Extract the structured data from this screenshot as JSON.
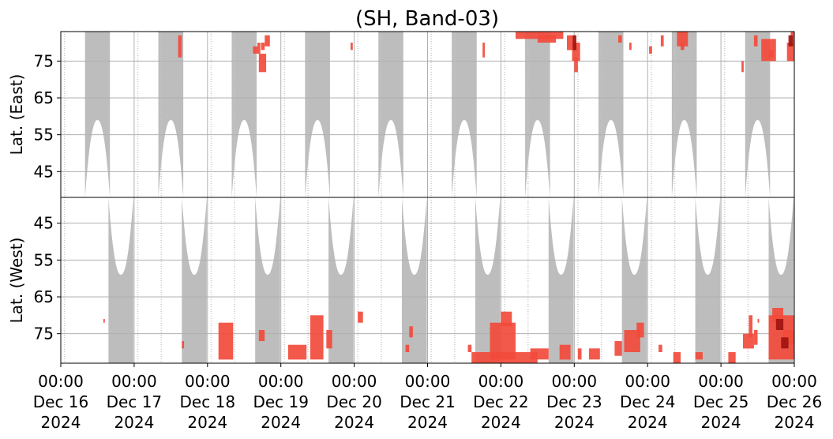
{
  "chart_data": {
    "type": "heatmap",
    "title": "(SH, Band-03)",
    "panels": [
      {
        "name": "east",
        "ylabel": "Lat. (East)",
        "yticks": [
          45,
          55,
          65,
          75
        ],
        "ylim": [
          38,
          83
        ]
      },
      {
        "name": "west",
        "ylabel": "Lat. (West)",
        "yticks": [
          75,
          65,
          55,
          45
        ],
        "ylim": [
          83,
          38
        ]
      }
    ],
    "xlim": [
      "2024-12-16T00:00",
      "2024-12-26T00:00"
    ],
    "xticks": [
      {
        "time": "00:00",
        "date": "Dec 16",
        "year": "2024"
      },
      {
        "time": "00:00",
        "date": "Dec 17",
        "year": "2024"
      },
      {
        "time": "00:00",
        "date": "Dec 18",
        "year": "2024"
      },
      {
        "time": "00:00",
        "date": "Dec 19",
        "year": "2024"
      },
      {
        "time": "00:00",
        "date": "Dec 20",
        "year": "2024"
      },
      {
        "time": "00:00",
        "date": "Dec 21",
        "year": "2024"
      },
      {
        "time": "00:00",
        "date": "Dec 22",
        "year": "2024"
      },
      {
        "time": "00:00",
        "date": "Dec 23",
        "year": "2024"
      },
      {
        "time": "00:00",
        "date": "Dec 24",
        "year": "2024"
      },
      {
        "time": "00:00",
        "date": "Dec 25",
        "year": "2024"
      },
      {
        "time": "00:00",
        "date": "Dec 26",
        "year": "2024"
      }
    ],
    "grid": true,
    "colors": {
      "coverage": "#bdbdbd",
      "event": "#f24b3c",
      "event_strong": "#a0140f",
      "grid": "#b0b0b0"
    },
    "coverage_east_centers_day": [
      0.5,
      1.5,
      2.5,
      3.5,
      4.5,
      5.5,
      6.5,
      7.5,
      8.5,
      9.5
    ],
    "coverage_west_centers_day": [
      0.82,
      1.82,
      2.82,
      3.82,
      4.82,
      5.82,
      6.82,
      7.82,
      8.82,
      9.82
    ],
    "coverage_halfwidth_day": 0.17,
    "coverage_edge_lat": 59,
    "east_events": [
      {
        "t0": 1.6,
        "t1": 1.65,
        "lat0": 76,
        "lat1": 82
      },
      {
        "t0": 2.68,
        "t1": 2.72,
        "lat0": 77,
        "lat1": 80
      },
      {
        "t0": 2.73,
        "t1": 2.78,
        "lat0": 78,
        "lat1": 80
      },
      {
        "t0": 2.62,
        "t1": 2.68,
        "lat0": 77,
        "lat1": 79
      },
      {
        "t0": 2.7,
        "t1": 2.8,
        "lat0": 72,
        "lat1": 77
      },
      {
        "t0": 2.78,
        "t1": 2.85,
        "lat0": 79,
        "lat1": 82
      },
      {
        "t0": 3.95,
        "t1": 3.98,
        "lat0": 78,
        "lat1": 80
      },
      {
        "t0": 5.75,
        "t1": 5.78,
        "lat0": 76,
        "lat1": 80
      },
      {
        "t0": 6.2,
        "t1": 6.85,
        "lat0": 81,
        "lat1": 83
      },
      {
        "t0": 6.5,
        "t1": 6.75,
        "lat0": 80,
        "lat1": 82
      },
      {
        "t0": 6.9,
        "t1": 7.0,
        "lat0": 78,
        "lat1": 82
      },
      {
        "t0": 6.97,
        "t1": 7.08,
        "lat0": 75,
        "lat1": 80
      },
      {
        "t0": 7.0,
        "t1": 7.05,
        "lat0": 72,
        "lat1": 76
      },
      {
        "t0": 7.6,
        "t1": 7.65,
        "lat0": 80,
        "lat1": 82
      },
      {
        "t0": 7.75,
        "t1": 7.78,
        "lat0": 78,
        "lat1": 80
      },
      {
        "t0": 8.02,
        "t1": 8.06,
        "lat0": 77,
        "lat1": 79
      },
      {
        "t0": 8.18,
        "t1": 8.22,
        "lat0": 79,
        "lat1": 82
      },
      {
        "t0": 8.4,
        "t1": 8.55,
        "lat0": 79,
        "lat1": 83
      },
      {
        "t0": 8.45,
        "t1": 8.5,
        "lat0": 78,
        "lat1": 80
      },
      {
        "t0": 9.28,
        "t1": 9.31,
        "lat0": 72,
        "lat1": 75
      },
      {
        "t0": 9.45,
        "t1": 9.5,
        "lat0": 79,
        "lat1": 82
      },
      {
        "t0": 9.55,
        "t1": 9.75,
        "lat0": 75,
        "lat1": 81
      },
      {
        "t0": 9.65,
        "t1": 9.72,
        "lat0": 76,
        "lat1": 78
      },
      {
        "t0": 9.9,
        "t1": 10.0,
        "lat0": 75,
        "lat1": 80
      },
      {
        "t0": 9.95,
        "t1": 10.0,
        "lat0": 79,
        "lat1": 83
      }
    ],
    "east_events_strong": [
      {
        "t0": 6.98,
        "t1": 7.03,
        "lat0": 78,
        "lat1": 82
      },
      {
        "t0": 9.92,
        "t1": 9.98,
        "lat0": 79,
        "lat1": 82
      }
    ],
    "west_events": [
      {
        "t0": 0.58,
        "t1": 0.6,
        "lat0": 71,
        "lat1": 72
      },
      {
        "t0": 1.65,
        "t1": 1.68,
        "lat0": 77,
        "lat1": 79
      },
      {
        "t0": 2.15,
        "t1": 2.35,
        "lat0": 72,
        "lat1": 82
      },
      {
        "t0": 2.7,
        "t1": 2.78,
        "lat0": 74,
        "lat1": 77
      },
      {
        "t0": 3.1,
        "t1": 3.35,
        "lat0": 78,
        "lat1": 82
      },
      {
        "t0": 3.4,
        "t1": 3.58,
        "lat0": 70,
        "lat1": 82
      },
      {
        "t0": 3.62,
        "t1": 3.7,
        "lat0": 74,
        "lat1": 79
      },
      {
        "t0": 4.05,
        "t1": 4.12,
        "lat0": 69,
        "lat1": 72
      },
      {
        "t0": 4.7,
        "t1": 4.75,
        "lat0": 78,
        "lat1": 80
      },
      {
        "t0": 4.75,
        "t1": 4.8,
        "lat0": 73,
        "lat1": 76
      },
      {
        "t0": 5.55,
        "t1": 5.6,
        "lat0": 78,
        "lat1": 80
      },
      {
        "t0": 5.6,
        "t1": 6.5,
        "lat0": 80,
        "lat1": 83
      },
      {
        "t0": 5.85,
        "t1": 6.2,
        "lat0": 72,
        "lat1": 82
      },
      {
        "t0": 6.0,
        "t1": 6.15,
        "lat0": 69,
        "lat1": 73
      },
      {
        "t0": 6.4,
        "t1": 6.65,
        "lat0": 79,
        "lat1": 82
      },
      {
        "t0": 6.8,
        "t1": 6.95,
        "lat0": 78,
        "lat1": 82
      },
      {
        "t0": 7.05,
        "t1": 7.1,
        "lat0": 79,
        "lat1": 82
      },
      {
        "t0": 7.2,
        "t1": 7.35,
        "lat0": 79,
        "lat1": 82
      },
      {
        "t0": 7.55,
        "t1": 7.65,
        "lat0": 77,
        "lat1": 81
      },
      {
        "t0": 7.68,
        "t1": 7.9,
        "lat0": 74,
        "lat1": 80
      },
      {
        "t0": 7.85,
        "t1": 7.95,
        "lat0": 72,
        "lat1": 76
      },
      {
        "t0": 8.15,
        "t1": 8.2,
        "lat0": 78,
        "lat1": 80
      },
      {
        "t0": 8.35,
        "t1": 8.45,
        "lat0": 80,
        "lat1": 83
      },
      {
        "t0": 8.65,
        "t1": 8.75,
        "lat0": 80,
        "lat1": 82
      },
      {
        "t0": 9.1,
        "t1": 9.2,
        "lat0": 80,
        "lat1": 83
      },
      {
        "t0": 9.3,
        "t1": 9.45,
        "lat0": 75,
        "lat1": 79
      },
      {
        "t0": 9.45,
        "t1": 9.5,
        "lat0": 74,
        "lat1": 78
      },
      {
        "t0": 9.38,
        "t1": 9.43,
        "lat0": 70,
        "lat1": 76
      },
      {
        "t0": 9.65,
        "t1": 10.0,
        "lat0": 70,
        "lat1": 82
      },
      {
        "t0": 9.7,
        "t1": 9.85,
        "lat0": 68,
        "lat1": 72
      },
      {
        "t0": 9.85,
        "t1": 10.0,
        "lat0": 74,
        "lat1": 78
      },
      {
        "t0": 9.5,
        "t1": 9.52,
        "lat0": 71,
        "lat1": 72
      }
    ],
    "west_events_strong": [
      {
        "t0": 9.75,
        "t1": 9.85,
        "lat0": 71,
        "lat1": 74
      },
      {
        "t0": 9.82,
        "t1": 9.92,
        "lat0": 76,
        "lat1": 79
      }
    ]
  }
}
